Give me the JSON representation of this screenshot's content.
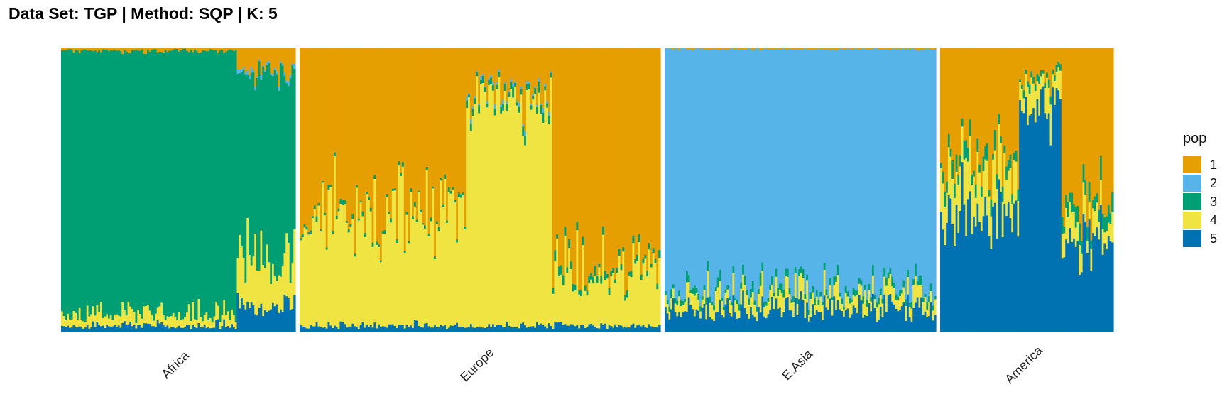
{
  "chart_data": {
    "type": "bar",
    "subtype": "stacked admixture (STRUCTURE) plot",
    "title": "Data Set: TGP | Method: SQP | K: 5",
    "ylim": [
      0,
      1
    ],
    "grid": false,
    "legend": {
      "title": "pop",
      "placement": "right",
      "entries": [
        {
          "label": "1",
          "color": "#E69F00"
        },
        {
          "label": "2",
          "color": "#56B4E9"
        },
        {
          "label": "3",
          "color": "#009E73"
        },
        {
          "label": "4",
          "color": "#F0E442"
        },
        {
          "label": "5",
          "color": "#0072B2"
        }
      ]
    },
    "panels": [
      {
        "label": "Africa",
        "n_bars": 120,
        "mean_ancestry": [
          0.03,
          0.0,
          0.85,
          0.08,
          0.04
        ],
        "segments": [
          {
            "from": 0.0,
            "to": 0.75,
            "ancestry": [
              0.01,
              0.0,
              0.93,
              0.04,
              0.02
            ]
          },
          {
            "from": 0.75,
            "to": 1.0,
            "ancestry": [
              0.08,
              0.01,
              0.67,
              0.16,
              0.08
            ]
          }
        ]
      },
      {
        "label": "Europe",
        "n_bars": 180,
        "mean_ancestry": [
          0.55,
          0.0,
          0.01,
          0.42,
          0.02
        ],
        "segments": [
          {
            "from": 0.0,
            "to": 0.46,
            "ancestry": [
              0.56,
              0.0,
              0.01,
              0.41,
              0.02
            ]
          },
          {
            "from": 0.46,
            "to": 0.7,
            "ancestry": [
              0.15,
              0.01,
              0.02,
              0.8,
              0.02
            ]
          },
          {
            "from": 0.7,
            "to": 1.0,
            "ancestry": [
              0.76,
              0.0,
              0.02,
              0.2,
              0.02
            ]
          }
        ]
      },
      {
        "label": "E.Asia",
        "n_bars": 140,
        "mean_ancestry": [
          0.0,
          0.85,
          0.02,
          0.05,
          0.08
        ],
        "segments": [
          {
            "from": 0.0,
            "to": 1.0,
            "ancestry": [
              0.005,
              0.85,
              0.02,
              0.05,
              0.075
            ]
          }
        ]
      },
      {
        "label": "America",
        "n_bars": 90,
        "mean_ancestry": [
          0.35,
          0.0,
          0.03,
          0.1,
          0.52
        ],
        "segments": [
          {
            "from": 0.0,
            "to": 0.45,
            "ancestry": [
              0.38,
              0.0,
              0.04,
              0.16,
              0.42
            ]
          },
          {
            "from": 0.45,
            "to": 0.7,
            "ancestry": [
              0.1,
              0.0,
              0.02,
              0.08,
              0.8
            ]
          },
          {
            "from": 0.7,
            "to": 1.0,
            "ancestry": [
              0.55,
              0.0,
              0.05,
              0.08,
              0.32
            ]
          }
        ]
      }
    ]
  }
}
